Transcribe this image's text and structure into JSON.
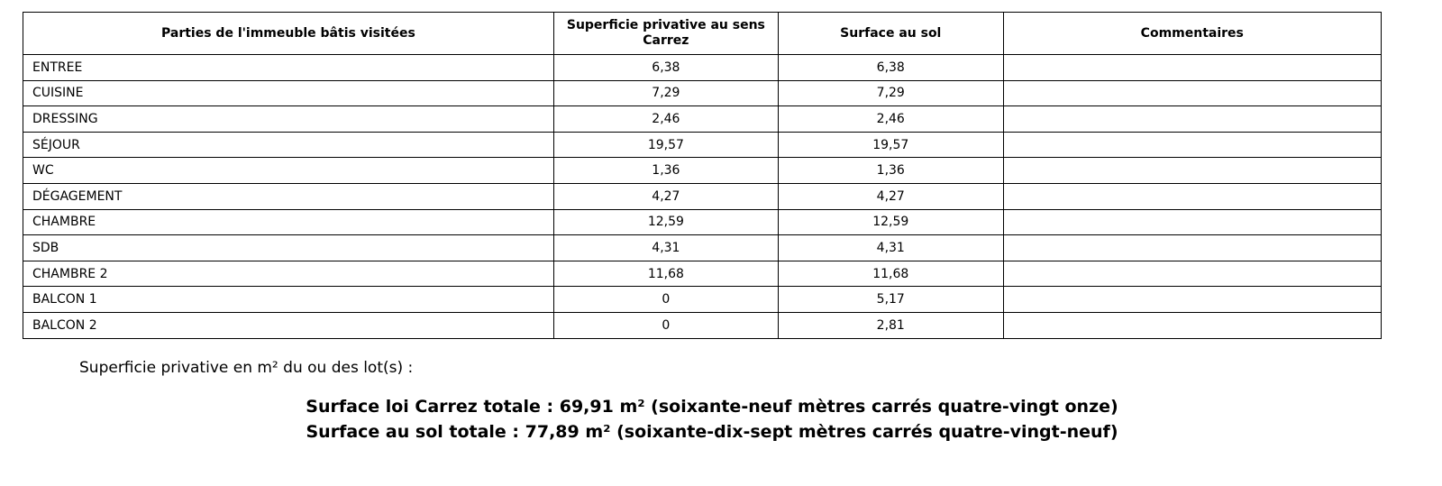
{
  "table": {
    "headers": [
      "Parties de l'immeuble bâtis visitées",
      "Superficie privative au sens Carrez",
      "Surface au sol",
      "Commentaires"
    ],
    "rows": [
      [
        "ENTREE",
        "6,38",
        "6,38",
        ""
      ],
      [
        "CUISINE",
        "7,29",
        "7,29",
        ""
      ],
      [
        "DRESSING",
        "2,46",
        "2,46",
        ""
      ],
      [
        "SÉJOUR",
        "19,57",
        "19,57",
        ""
      ],
      [
        "WC",
        "1,36",
        "1,36",
        ""
      ],
      [
        "DÉGAGEMENT",
        "4,27",
        "4,27",
        ""
      ],
      [
        "CHAMBRE",
        "12,59",
        "12,59",
        ""
      ],
      [
        "SDB",
        "4,31",
        "4,31",
        ""
      ],
      [
        "CHAMBRE 2",
        "11,68",
        "11,68",
        ""
      ],
      [
        "BALCON 1",
        "0",
        "5,17",
        ""
      ],
      [
        "BALCON 2",
        "0",
        "2,81",
        ""
      ]
    ]
  },
  "summary": {
    "intro": "Superficie privative en m² du ou des lot(s) :",
    "carrez_total": "Surface loi Carrez totale : 69,91 m² (soixante-neuf mètres carrés quatre-vingt onze)",
    "sol_total": "Surface au sol totale : 77,89 m² (soixante-dix-sept mètres carrés quatre-vingt-neuf)"
  }
}
